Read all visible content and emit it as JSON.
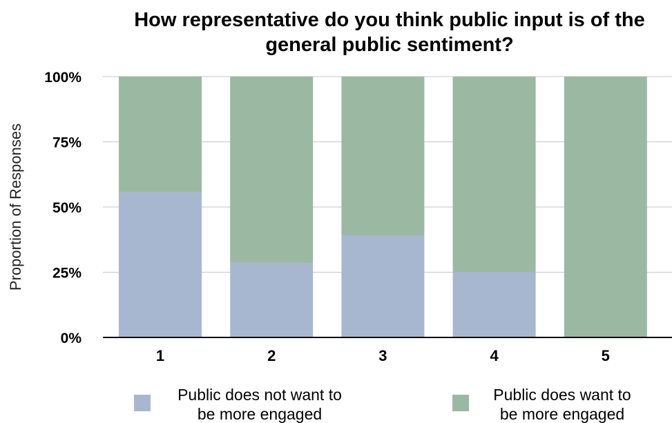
{
  "chart_data": {
    "type": "bar",
    "stacked": true,
    "title_lines": [
      "How representative do you think public input is of the",
      "general public sentiment?"
    ],
    "ylabel": "Proportion of Responses",
    "xlabel": "",
    "categories": [
      "1",
      "2",
      "3",
      "4",
      "5"
    ],
    "y_ticks": [
      "0%",
      "25%",
      "50%",
      "75%",
      "100%"
    ],
    "ylim": [
      0,
      100
    ],
    "grid": true,
    "legend_position": "bottom",
    "series": [
      {
        "name_lines": [
          "Public does not want to",
          "be more engaged"
        ],
        "color": "#a8b7d0",
        "values": [
          55.6,
          28.6,
          39.0,
          25.0,
          0
        ]
      },
      {
        "name_lines": [
          "Public does want to",
          "be more engaged"
        ],
        "color": "#9bb9a2",
        "values": [
          44.4,
          71.4,
          61.0,
          75.0,
          100
        ]
      }
    ]
  }
}
